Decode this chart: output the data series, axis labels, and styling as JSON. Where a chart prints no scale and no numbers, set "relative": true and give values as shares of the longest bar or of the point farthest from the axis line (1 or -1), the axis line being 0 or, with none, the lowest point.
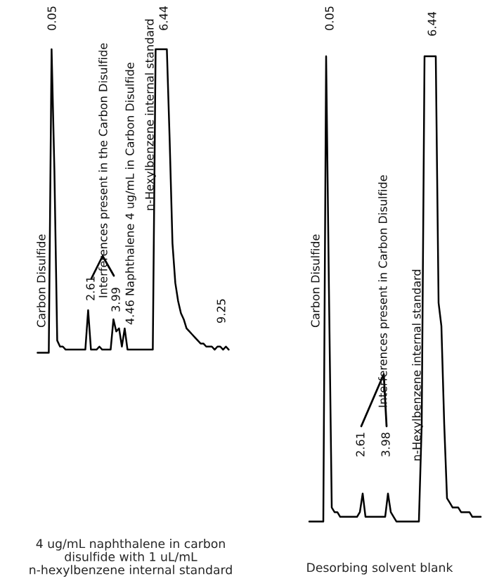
{
  "chart_data": [
    {
      "type": "line",
      "relative": true,
      "xlabel": "4 ug/mL naphthalene in carbon\ndisulfide with 1 uL/mL\nn-hexylbenzene internal standard",
      "categories": [
        null,
        null,
        null,
        null,
        null,
        null,
        null,
        null,
        null,
        null,
        null,
        null,
        null,
        null,
        null,
        null,
        null,
        null,
        null,
        null,
        null,
        null,
        null,
        null,
        null,
        null,
        null,
        null,
        null,
        null,
        null,
        null,
        null,
        null,
        null,
        null,
        null,
        null,
        null,
        null,
        null,
        null,
        null,
        null,
        null,
        null,
        null,
        null,
        null,
        null,
        null,
        null,
        null,
        null,
        null,
        null,
        null,
        null,
        null,
        null,
        null,
        null,
        null,
        null,
        null,
        null,
        null,
        null,
        null
      ],
      "series": [
        {
          "color": "#000000",
          "values": [
            0,
            0,
            0,
            0,
            0,
            1,
            0.6,
            0.04,
            0.02,
            0.02,
            0.01,
            0.01,
            0.01,
            0.01,
            0.01,
            0.01,
            0.01,
            0.01,
            0.14,
            0.01,
            0.01,
            0.01,
            0.02,
            0.01,
            0.01,
            0.01,
            0.01,
            0.11,
            0.07,
            0.08,
            0.02,
            0.08,
            0.01,
            0.01,
            0.01,
            0.01,
            0.01,
            0.01,
            0.01,
            0.01,
            0.01,
            0.01,
            1,
            1,
            1,
            1,
            1,
            0.7,
            0.36,
            0.23,
            0.17,
            0.13,
            0.11,
            0.08,
            0.07,
            0.06,
            0.05,
            0.04,
            0.03,
            0.03,
            0.02,
            0.02,
            0.02,
            0.01,
            0.02,
            0.02,
            0.01,
            0.02,
            0.01
          ]
        }
      ],
      "annotations": [
        "0.05",
        "Carbon Disulfide",
        "Interferences present in the Carbon Disulfide",
        "2.61",
        "3.99",
        "4.46 Naphthalene 4 ug/mL in Carbon Disulfide",
        "n-Hexylbenzene internal standard",
        "6.44",
        "9.25"
      ]
    },
    {
      "type": "line",
      "relative": true,
      "xlabel": "Desorbing solvent blank",
      "categories": [
        null,
        null,
        null,
        null,
        null,
        null,
        null,
        null,
        null,
        null,
        null,
        null,
        null,
        null,
        null,
        null,
        null,
        null,
        null,
        null,
        null,
        null,
        null,
        null,
        null,
        null,
        null,
        null,
        null,
        null,
        null,
        null,
        null,
        null,
        null,
        null,
        null,
        null,
        null,
        null,
        null,
        null,
        null,
        null,
        null,
        null,
        null,
        null,
        null,
        null,
        null,
        null,
        null,
        null,
        null,
        null,
        null,
        null,
        null,
        null,
        null,
        null
      ],
      "series": [
        {
          "color": "#000000",
          "values": [
            0,
            0,
            0,
            0,
            0,
            0,
            1,
            0.5,
            0.03,
            0.02,
            0.02,
            0.01,
            0.01,
            0.01,
            0.01,
            0.01,
            0.01,
            0.01,
            0.02,
            0.06,
            0.01,
            0.01,
            0.01,
            0.01,
            0.01,
            0.01,
            0.01,
            0.01,
            0.06,
            0.02,
            0.01,
            0,
            0,
            0,
            0,
            0,
            0,
            0,
            0,
            0,
            0.21,
            1,
            1,
            1,
            1,
            1,
            0.47,
            0.42,
            0.21,
            0.05,
            0.04,
            0.03,
            0.03,
            0.03,
            0.02,
            0.02,
            0.02,
            0.02,
            0.01,
            0.01,
            0.01,
            0.01
          ]
        }
      ],
      "annotations": [
        "0.05",
        "Carbon Disulfide",
        "Interferences present in Carbon Disulfide",
        "2.61",
        "3.98",
        "n-Hexylbenzene internal standard",
        "6.44"
      ]
    }
  ]
}
